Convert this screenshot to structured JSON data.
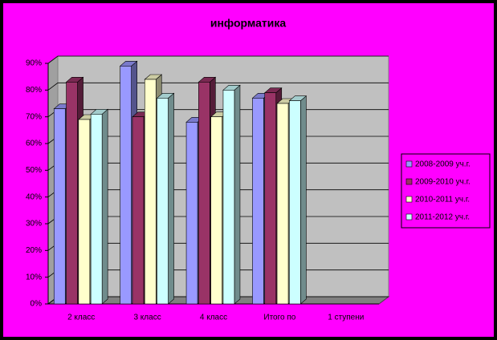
{
  "chart_data": {
    "type": "bar3d",
    "title": "информатика",
    "categories": [
      "2 класс",
      "3 класс",
      "4 класс",
      "Итого по",
      "1 ступени"
    ],
    "series": [
      {
        "name": "2008-2009 уч.г.",
        "color": "#9999ff",
        "values": [
          73,
          89,
          68,
          77,
          null
        ]
      },
      {
        "name": "2009-2010 уч.г.",
        "color": "#993366",
        "values": [
          83,
          70,
          83,
          79,
          null
        ]
      },
      {
        "name": "2010-2011 уч.г.",
        "color": "#ffffcc",
        "values": [
          69,
          84,
          70,
          75,
          null
        ]
      },
      {
        "name": "2011-2012 уч.г.",
        "color": "#ccffff",
        "values": [
          71,
          77,
          80,
          76,
          null
        ]
      }
    ],
    "ylim": [
      0,
      90
    ],
    "yticks": [
      {
        "value": 0,
        "label": "0%"
      },
      {
        "value": 10,
        "label": "10%"
      },
      {
        "value": 20,
        "label": "20%"
      },
      {
        "value": 30,
        "label": "30%"
      },
      {
        "value": 40,
        "label": "40%"
      },
      {
        "value": 50,
        "label": "50%"
      },
      {
        "value": 60,
        "label": "60%"
      },
      {
        "value": 70,
        "label": "70%"
      },
      {
        "value": 80,
        "label": "80%"
      },
      {
        "value": 90,
        "label": "90%"
      }
    ],
    "grid": true,
    "legend": "right"
  }
}
